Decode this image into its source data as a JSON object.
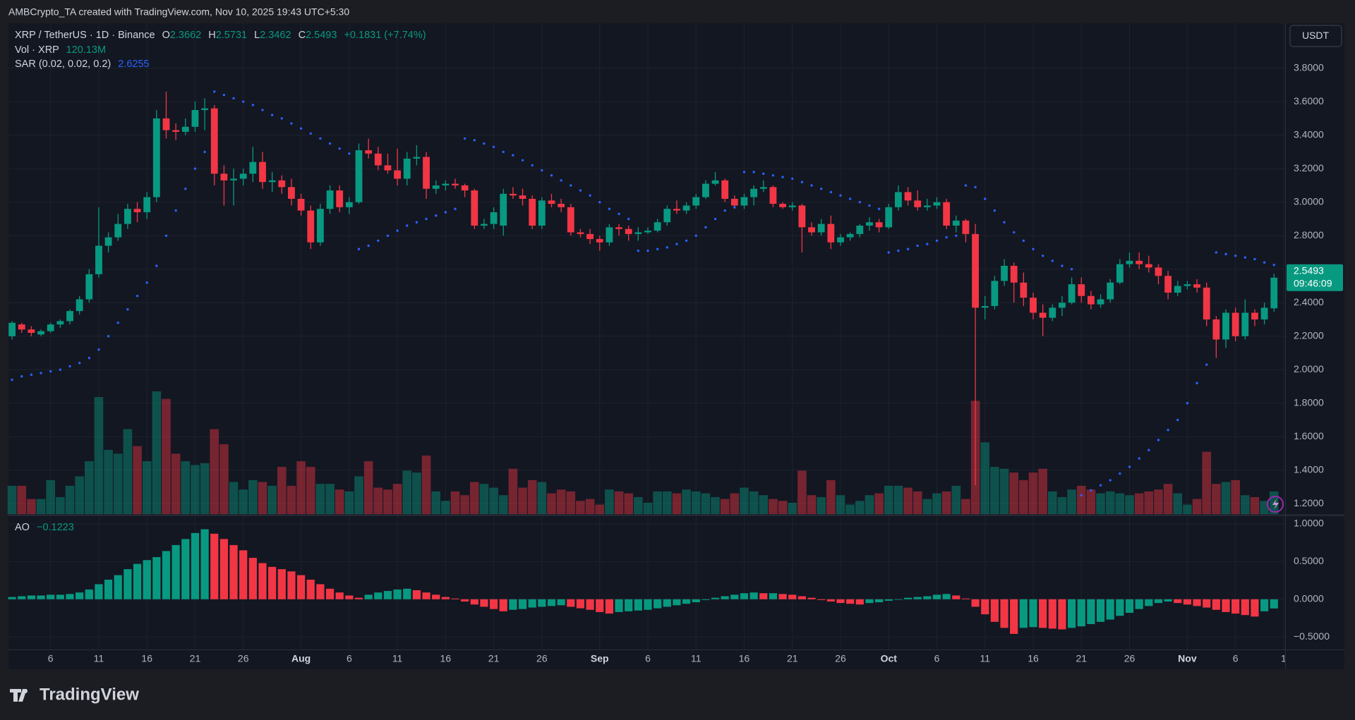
{
  "header": {
    "attribution": "AMBCrypto_TA created with TradingView.com, Nov 10, 2025 19:43 UTC+5:30"
  },
  "footer": {
    "logo": "TradingView"
  },
  "chart_data": {
    "type": "candlestick",
    "symbol": "XRP / TetherUS · 1D · Binance",
    "legend_keys": [
      "O",
      "H",
      "L",
      "C"
    ],
    "change_text": "+0.1831 (+7.74%)",
    "currency": "USDT",
    "countdown": "09:46:09",
    "colors": {
      "up": "#089981",
      "down": "#f23645",
      "sar": "#2962ff"
    },
    "grid": true,
    "ylim": [
      1.138,
      4.068
    ],
    "yticks": [
      {
        "value": 3.8,
        "label": "3.8000"
      },
      {
        "value": 3.6,
        "label": "3.6000"
      },
      {
        "value": 3.4,
        "label": "3.4000"
      },
      {
        "value": 3.2,
        "label": "3.2000"
      },
      {
        "value": 3.0,
        "label": "3.0000"
      },
      {
        "value": 2.8,
        "label": "2.8000"
      },
      {
        "value": 2.6,
        "label": "2.6000"
      },
      {
        "value": 2.4,
        "label": "2.4000"
      },
      {
        "value": 2.2,
        "label": "2.2000"
      },
      {
        "value": 2.0,
        "label": "2.0000"
      },
      {
        "value": 1.8,
        "label": "1.8000"
      },
      {
        "value": 1.6,
        "label": "1.6000"
      },
      {
        "value": 1.4,
        "label": "1.4000"
      },
      {
        "value": 1.2,
        "label": "1.2000"
      }
    ],
    "xticks": [
      {
        "value": 4,
        "label": "6"
      },
      {
        "value": 9,
        "label": "11"
      },
      {
        "value": 14,
        "label": "16"
      },
      {
        "value": 19,
        "label": "21"
      },
      {
        "value": 24,
        "label": "26"
      },
      {
        "value": 30,
        "label": "Aug"
      },
      {
        "value": 35,
        "label": "6"
      },
      {
        "value": 40,
        "label": "11"
      },
      {
        "value": 45,
        "label": "16"
      },
      {
        "value": 50,
        "label": "21"
      },
      {
        "value": 55,
        "label": "26"
      },
      {
        "value": 61,
        "label": "Sep"
      },
      {
        "value": 66,
        "label": "6"
      },
      {
        "value": 71,
        "label": "11"
      },
      {
        "value": 76,
        "label": "16"
      },
      {
        "value": 81,
        "label": "21"
      },
      {
        "value": 86,
        "label": "26"
      },
      {
        "value": 91,
        "label": "Oct"
      },
      {
        "value": 96,
        "label": "6"
      },
      {
        "value": 101,
        "label": "11"
      },
      {
        "value": 106,
        "label": "16"
      },
      {
        "value": 111,
        "label": "21"
      },
      {
        "value": 116,
        "label": "26"
      },
      {
        "value": 122,
        "label": "Nov"
      },
      {
        "value": 127,
        "label": "6"
      },
      {
        "value": 132,
        "label": "1"
      }
    ],
    "ohlc": [
      [
        2.2,
        2.29,
        2.18,
        2.28
      ],
      [
        2.27,
        2.28,
        2.22,
        2.24
      ],
      [
        2.24,
        2.26,
        2.2,
        2.22
      ],
      [
        2.21,
        2.24,
        2.2,
        2.23
      ],
      [
        2.23,
        2.28,
        2.22,
        2.27
      ],
      [
        2.27,
        2.3,
        2.25,
        2.29
      ],
      [
        2.29,
        2.36,
        2.27,
        2.35
      ],
      [
        2.35,
        2.44,
        2.33,
        2.42
      ],
      [
        2.42,
        2.6,
        2.4,
        2.57
      ],
      [
        2.57,
        2.97,
        2.55,
        2.74
      ],
      [
        2.74,
        2.82,
        2.7,
        2.79
      ],
      [
        2.79,
        2.93,
        2.77,
        2.87
      ],
      [
        2.87,
        2.99,
        2.84,
        2.96
      ],
      [
        2.96,
        3.0,
        2.88,
        2.94
      ],
      [
        2.94,
        3.06,
        2.9,
        3.03
      ],
      [
        3.03,
        3.55,
        3.0,
        3.5
      ],
      [
        3.5,
        3.66,
        3.38,
        3.43
      ],
      [
        3.43,
        3.47,
        3.37,
        3.42
      ],
      [
        3.42,
        3.5,
        3.4,
        3.45
      ],
      [
        3.45,
        3.6,
        3.42,
        3.55
      ],
      [
        3.55,
        3.62,
        3.43,
        3.56
      ],
      [
        3.56,
        3.58,
        3.1,
        3.17
      ],
      [
        3.17,
        3.22,
        2.98,
        3.13
      ],
      [
        3.13,
        3.2,
        2.98,
        3.14
      ],
      [
        3.14,
        3.2,
        3.1,
        3.17
      ],
      [
        3.17,
        3.33,
        3.12,
        3.24
      ],
      [
        3.24,
        3.3,
        3.08,
        3.12
      ],
      [
        3.12,
        3.18,
        3.06,
        3.13
      ],
      [
        3.13,
        3.16,
        3.05,
        3.09
      ],
      [
        3.09,
        3.14,
        2.98,
        3.02
      ],
      [
        3.02,
        3.05,
        2.92,
        2.95
      ],
      [
        2.95,
        2.98,
        2.72,
        2.76
      ],
      [
        2.76,
        2.99,
        2.74,
        2.96
      ],
      [
        2.96,
        3.1,
        2.93,
        3.07
      ],
      [
        3.07,
        3.1,
        2.94,
        2.97
      ],
      [
        2.97,
        3.03,
        2.93,
        3.0
      ],
      [
        3.0,
        3.35,
        2.99,
        3.31
      ],
      [
        3.31,
        3.38,
        3.26,
        3.29
      ],
      [
        3.29,
        3.33,
        3.19,
        3.22
      ],
      [
        3.22,
        3.29,
        3.17,
        3.19
      ],
      [
        3.19,
        3.32,
        3.1,
        3.14
      ],
      [
        3.14,
        3.3,
        3.1,
        3.26
      ],
      [
        3.26,
        3.34,
        3.22,
        3.27
      ],
      [
        3.27,
        3.3,
        3.02,
        3.08
      ],
      [
        3.08,
        3.13,
        3.05,
        3.1
      ],
      [
        3.1,
        3.13,
        3.07,
        3.11
      ],
      [
        3.11,
        3.14,
        3.08,
        3.1
      ],
      [
        3.1,
        3.11,
        3.03,
        3.07
      ],
      [
        3.07,
        3.08,
        2.84,
        2.86
      ],
      [
        2.86,
        2.9,
        2.84,
        2.87
      ],
      [
        2.87,
        2.97,
        2.84,
        2.94
      ],
      [
        2.86,
        3.08,
        2.8,
        3.05
      ],
      [
        3.05,
        3.09,
        3.02,
        3.04
      ],
      [
        3.04,
        3.08,
        2.98,
        3.02
      ],
      [
        3.02,
        3.04,
        2.84,
        2.86
      ],
      [
        2.86,
        3.03,
        2.84,
        3.01
      ],
      [
        3.01,
        3.05,
        2.97,
        2.99
      ],
      [
        2.99,
        3.02,
        2.94,
        2.97
      ],
      [
        2.97,
        2.99,
        2.8,
        2.82
      ],
      [
        2.82,
        2.84,
        2.79,
        2.81
      ],
      [
        2.81,
        2.84,
        2.75,
        2.78
      ],
      [
        2.78,
        2.8,
        2.71,
        2.76
      ],
      [
        2.76,
        2.87,
        2.74,
        2.85
      ],
      [
        2.85,
        2.87,
        2.8,
        2.84
      ],
      [
        2.84,
        2.86,
        2.77,
        2.81
      ],
      [
        2.81,
        2.85,
        2.77,
        2.82
      ],
      [
        2.82,
        2.85,
        2.81,
        2.83
      ],
      [
        2.83,
        2.9,
        2.82,
        2.88
      ],
      [
        2.88,
        2.98,
        2.86,
        2.96
      ],
      [
        2.96,
        3.01,
        2.93,
        2.95
      ],
      [
        2.95,
        3.0,
        2.93,
        2.98
      ],
      [
        2.98,
        3.05,
        2.96,
        3.03
      ],
      [
        3.03,
        3.13,
        3.02,
        3.11
      ],
      [
        3.11,
        3.18,
        3.1,
        3.13
      ],
      [
        3.13,
        3.14,
        3.0,
        3.02
      ],
      [
        3.02,
        3.04,
        2.96,
        2.98
      ],
      [
        2.98,
        3.05,
        2.96,
        3.03
      ],
      [
        3.03,
        3.1,
        2.98,
        3.08
      ],
      [
        3.08,
        3.13,
        3.06,
        3.09
      ],
      [
        3.09,
        3.1,
        2.97,
        2.99
      ],
      [
        2.99,
        3.0,
        2.96,
        2.97
      ],
      [
        2.97,
        3.0,
        2.95,
        2.98
      ],
      [
        2.98,
        2.99,
        2.7,
        2.85
      ],
      [
        2.85,
        2.88,
        2.8,
        2.82
      ],
      [
        2.82,
        2.9,
        2.8,
        2.87
      ],
      [
        2.87,
        2.92,
        2.72,
        2.76
      ],
      [
        2.76,
        2.81,
        2.74,
        2.79
      ],
      [
        2.79,
        2.82,
        2.77,
        2.81
      ],
      [
        2.81,
        2.87,
        2.79,
        2.86
      ],
      [
        2.86,
        2.91,
        2.83,
        2.88
      ],
      [
        2.88,
        2.9,
        2.82,
        2.85
      ],
      [
        2.85,
        2.99,
        2.84,
        2.97
      ],
      [
        2.97,
        3.1,
        2.95,
        3.06
      ],
      [
        3.06,
        3.09,
        2.98,
        3.01
      ],
      [
        3.01,
        3.07,
        2.95,
        2.97
      ],
      [
        2.97,
        3.02,
        2.95,
        2.98
      ],
      [
        2.98,
        3.03,
        2.96,
        3.0
      ],
      [
        3.0,
        3.02,
        2.84,
        2.86
      ],
      [
        2.86,
        2.92,
        2.82,
        2.89
      ],
      [
        2.89,
        2.9,
        2.76,
        2.81
      ],
      [
        2.81,
        2.87,
        1.31,
        2.37
      ],
      [
        2.37,
        2.44,
        2.3,
        2.38
      ],
      [
        2.38,
        2.56,
        2.36,
        2.53
      ],
      [
        2.53,
        2.66,
        2.5,
        2.62
      ],
      [
        2.62,
        2.64,
        2.4,
        2.52
      ],
      [
        2.52,
        2.58,
        2.38,
        2.43
      ],
      [
        2.43,
        2.46,
        2.3,
        2.34
      ],
      [
        2.34,
        2.39,
        2.2,
        2.31
      ],
      [
        2.31,
        2.39,
        2.29,
        2.37
      ],
      [
        2.37,
        2.44,
        2.32,
        2.4
      ],
      [
        2.4,
        2.55,
        2.39,
        2.51
      ],
      [
        2.51,
        2.55,
        2.4,
        2.44
      ],
      [
        2.44,
        2.47,
        2.36,
        2.39
      ],
      [
        2.39,
        2.45,
        2.37,
        2.42
      ],
      [
        2.42,
        2.54,
        2.4,
        2.52
      ],
      [
        2.52,
        2.66,
        2.51,
        2.63
      ],
      [
        2.63,
        2.7,
        2.61,
        2.65
      ],
      [
        2.65,
        2.7,
        2.6,
        2.63
      ],
      [
        2.63,
        2.68,
        2.58,
        2.61
      ],
      [
        2.61,
        2.63,
        2.51,
        2.56
      ],
      [
        2.56,
        2.59,
        2.42,
        2.46
      ],
      [
        2.46,
        2.53,
        2.44,
        2.5
      ],
      [
        2.5,
        2.53,
        2.48,
        2.51
      ],
      [
        2.51,
        2.54,
        2.46,
        2.49
      ],
      [
        2.49,
        2.52,
        2.26,
        2.3
      ],
      [
        2.3,
        2.32,
        2.07,
        2.18
      ],
      [
        2.18,
        2.36,
        2.13,
        2.34
      ],
      [
        2.34,
        2.37,
        2.17,
        2.2
      ],
      [
        2.2,
        2.42,
        2.18,
        2.34
      ],
      [
        2.34,
        2.36,
        2.26,
        2.3
      ],
      [
        2.3,
        2.4,
        2.27,
        2.37
      ],
      [
        2.3662,
        2.5731,
        2.3462,
        2.5493
      ]
    ],
    "volume": {
      "name": "Vol · XRP",
      "last_label": "120.13M",
      "values": [
        150,
        150,
        80,
        80,
        180,
        90,
        150,
        200,
        280,
        620,
        340,
        320,
        450,
        360,
        280,
        650,
        610,
        320,
        280,
        260,
        270,
        450,
        370,
        170,
        130,
        180,
        170,
        150,
        250,
        150,
        280,
        250,
        160,
        160,
        130,
        120,
        200,
        280,
        140,
        130,
        160,
        230,
        220,
        310,
        120,
        70,
        120,
        100,
        170,
        160,
        140,
        100,
        240,
        140,
        180,
        170,
        110,
        130,
        120,
        70,
        80,
        50,
        130,
        120,
        110,
        90,
        60,
        120,
        120,
        110,
        130,
        120,
        110,
        90,
        80,
        110,
        140,
        120,
        100,
        80,
        70,
        60,
        230,
        100,
        90,
        180,
        100,
        50,
        70,
        100,
        110,
        150,
        150,
        140,
        120,
        80,
        110,
        120,
        150,
        80,
        600,
        380,
        250,
        240,
        220,
        180,
        220,
        240,
        120,
        90,
        130,
        150,
        130,
        110,
        120,
        110,
        100,
        110,
        120,
        130,
        160,
        110,
        50,
        80,
        330,
        160,
        170,
        180,
        100,
        90,
        70,
        120.13
      ]
    },
    "sar": {
      "name": "SAR (0.02, 0.02, 0.2)",
      "values": [
        1.94,
        1.96,
        1.97,
        1.98,
        1.99,
        2.0,
        2.02,
        2.04,
        2.07,
        2.12,
        2.2,
        2.28,
        2.36,
        2.44,
        2.52,
        2.62,
        2.8,
        2.95,
        3.08,
        3.2,
        3.3,
        3.66,
        3.64,
        3.62,
        3.6,
        3.58,
        3.55,
        3.52,
        3.5,
        3.47,
        3.44,
        3.41,
        3.38,
        3.35,
        3.32,
        3.29,
        2.72,
        2.74,
        2.77,
        2.8,
        2.83,
        2.86,
        2.88,
        2.9,
        2.92,
        2.94,
        2.96,
        3.38,
        3.37,
        3.35,
        3.33,
        3.3,
        3.28,
        3.25,
        3.22,
        3.19,
        3.16,
        3.13,
        3.1,
        3.07,
        3.04,
        3.0,
        2.96,
        2.93,
        2.9,
        2.71,
        2.71,
        2.72,
        2.73,
        2.75,
        2.77,
        2.8,
        2.85,
        2.9,
        2.95,
        2.97,
        3.18,
        3.18,
        3.17,
        3.16,
        3.15,
        3.14,
        3.12,
        3.1,
        3.08,
        3.06,
        3.04,
        3.02,
        3.0,
        2.98,
        2.96,
        2.7,
        2.71,
        2.72,
        2.74,
        2.75,
        2.77,
        2.79,
        2.8,
        3.1,
        3.09,
        3.02,
        2.95,
        2.88,
        2.82,
        2.77,
        2.72,
        2.68,
        2.65,
        2.62,
        2.6,
        1.25,
        1.28,
        1.31,
        1.34,
        1.38,
        1.42,
        1.47,
        1.52,
        1.58,
        1.64,
        1.7,
        1.8,
        1.92,
        2.03,
        2.7,
        2.69,
        2.68,
        2.67,
        2.66,
        2.64,
        2.6255
      ]
    },
    "ao": {
      "name": "AO",
      "last_label": "−0.1223",
      "ylim": [
        -0.667,
        1.103
      ],
      "yticks": [
        {
          "value": 1,
          "label": "1.0000"
        },
        {
          "value": 0.5,
          "label": "0.5000"
        },
        {
          "value": 0,
          "label": "0.0000"
        },
        {
          "value": -0.5,
          "label": "−0.5000"
        }
      ],
      "values": [
        0.03,
        0.04,
        0.05,
        0.05,
        0.06,
        0.06,
        0.07,
        0.09,
        0.13,
        0.2,
        0.26,
        0.32,
        0.4,
        0.47,
        0.52,
        0.56,
        0.64,
        0.72,
        0.8,
        0.88,
        0.93,
        0.87,
        0.8,
        0.72,
        0.65,
        0.55,
        0.48,
        0.43,
        0.4,
        0.37,
        0.32,
        0.26,
        0.2,
        0.14,
        0.09,
        0.05,
        0.02,
        0.06,
        0.09,
        0.11,
        0.13,
        0.14,
        0.12,
        0.09,
        0.06,
        0.03,
        0.01,
        -0.03,
        -0.07,
        -0.1,
        -0.13,
        -0.16,
        -0.14,
        -0.13,
        -0.11,
        -0.1,
        -0.09,
        -0.08,
        -0.1,
        -0.12,
        -0.14,
        -0.17,
        -0.19,
        -0.17,
        -0.16,
        -0.15,
        -0.14,
        -0.12,
        -0.1,
        -0.08,
        -0.06,
        -0.04,
        -0.01,
        0.02,
        0.04,
        0.06,
        0.08,
        0.09,
        0.08,
        0.08,
        0.07,
        0.06,
        0.04,
        0.02,
        -0.01,
        -0.03,
        -0.05,
        -0.06,
        -0.07,
        -0.05,
        -0.04,
        -0.02,
        0.0,
        0.02,
        0.03,
        0.04,
        0.06,
        0.07,
        0.05,
        0.01,
        -0.1,
        -0.2,
        -0.3,
        -0.38,
        -0.46,
        -0.38,
        -0.37,
        -0.38,
        -0.39,
        -0.4,
        -0.38,
        -0.36,
        -0.33,
        -0.3,
        -0.27,
        -0.22,
        -0.18,
        -0.13,
        -0.09,
        -0.05,
        -0.03,
        -0.05,
        -0.07,
        -0.09,
        -0.11,
        -0.14,
        -0.17,
        -0.19,
        -0.21,
        -0.23,
        -0.16,
        -0.1223
      ]
    }
  }
}
